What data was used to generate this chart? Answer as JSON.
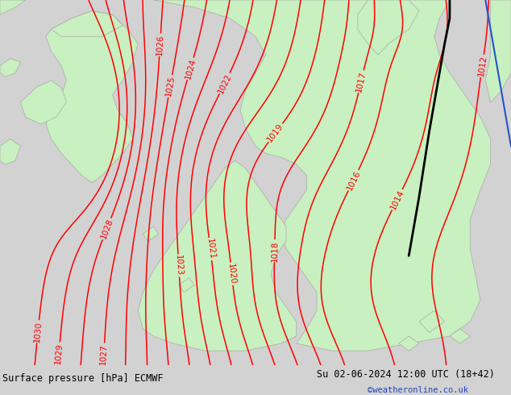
{
  "title_left": "Surface pressure [hPa] ECMWF",
  "title_right": "Su 02-06-2024 12:00 UTC (18+42)",
  "watermark": "©weatheronline.co.uk",
  "bg_color": "#d2d2d2",
  "land_color": "#c8f0c0",
  "contour_color": "#ff0000",
  "contour_linewidth": 1.1,
  "black_line_color": "#000000",
  "blue_line_color": "#2255cc",
  "coast_color": "#aaaaaa",
  "label_fontsize": 7.5,
  "footer_fontsize": 8.5,
  "watermark_fontsize": 7.5,
  "watermark_color": "#2244bb",
  "contour_levels": [
    1012,
    1014,
    1016,
    1017,
    1018,
    1019,
    1020,
    1021,
    1022,
    1023,
    1024,
    1025,
    1026,
    1027,
    1028,
    1029,
    1030
  ]
}
